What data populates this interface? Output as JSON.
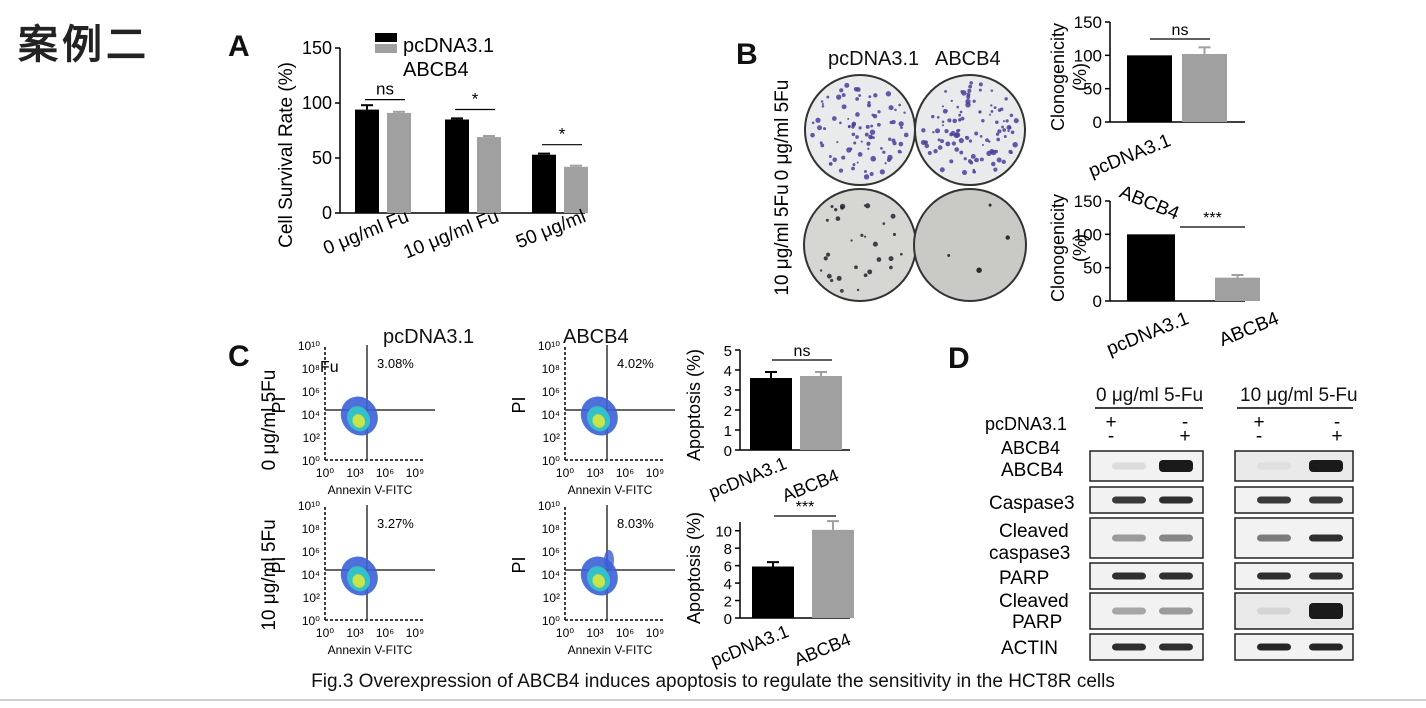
{
  "header_title": "案例二",
  "caption": "Fig.3 Overexpression of ABCB4 induces apoptosis to regulate the sensitivity in the HCT8R cells",
  "colors": {
    "pcdna": "#000000",
    "abcb4": "#a0a0a0"
  },
  "panelA": {
    "letter": "A",
    "ylabel": "Cell Survival Rate (%)",
    "yticks": [
      "0",
      "50",
      "100",
      "150"
    ],
    "categories": [
      "0 μg/ml Fu",
      "10 μg/ml Fu",
      "50 μg/ml"
    ],
    "legend": [
      "pcDNA3.1",
      "ABCB4"
    ],
    "significance": [
      "ns",
      "*",
      "*"
    ]
  },
  "panelB": {
    "letter": "B",
    "col_labels": [
      "pcDNA3.1",
      "ABCB4"
    ],
    "row_labels": [
      "0 μg/ml 5Fu",
      "10 μg/ml 5Fu"
    ],
    "chart_ylabel": [
      "Clonogenicity",
      "(%)"
    ],
    "top_yticks": [
      "0",
      "50",
      "100",
      "150"
    ],
    "top_xlabels": [
      "pcDNA3.1",
      "ABCB4"
    ],
    "top_sig": "ns",
    "bottom_yticks": [
      "0",
      "50",
      "100",
      "150"
    ],
    "bottom_xlabels": [
      "pcDNA3.1",
      "ABCB4"
    ],
    "bottom_sig": "***"
  },
  "panelC": {
    "letter": "C",
    "col_titles": [
      "pcDNA3.1",
      "ABCB4"
    ],
    "row_labels": [
      "0 μg/ml 5Fu",
      "10 μg/ml 5Fu"
    ],
    "stray_label": "Fu",
    "flow_yticks": [
      "10⁰",
      "10²",
      "10⁴",
      "10⁶",
      "10⁸",
      "10¹⁰"
    ],
    "flow_xticks": [
      "10⁰",
      "10³",
      "10⁶",
      "10⁹"
    ],
    "flow_xlabel": "Annexin V-FITC",
    "flow_ylabel": "PI",
    "percentages": [
      "3.08%",
      "4.02%",
      "3.27%",
      "8.03%"
    ],
    "apoptosis_ylabel": "Apoptosis (%)",
    "top_yticks": [
      "0",
      "1",
      "2",
      "3",
      "4",
      "5"
    ],
    "bottom_yticks": [
      "0",
      "2",
      "4",
      "6",
      "8",
      "10"
    ],
    "xlabels": [
      "pcDNA3.1",
      "ABCB4"
    ],
    "top_sig": "ns",
    "bottom_sig": "***"
  },
  "panelD": {
    "letter": "D",
    "group_titles": [
      "0 μg/ml 5-Fu",
      "10 μg/ml 5-Fu"
    ],
    "row_header_labels": [
      "pcDNA3.1",
      "ABCB4"
    ],
    "signs_pcdna": [
      "+",
      "-",
      "+",
      "-"
    ],
    "signs_abcb4": [
      "-",
      "+",
      "-",
      "+"
    ],
    "blot_labels": [
      "ABCB4",
      "Caspase3",
      "Cleaved",
      "caspase3",
      "PARP",
      "Cleaved",
      "PARP",
      "ACTIN"
    ]
  },
  "chart_data": [
    {
      "type": "bar",
      "title": "",
      "ylabel": "Cell Survival Rate (%)",
      "categories": [
        "0 μg/ml Fu",
        "10 μg/ml Fu",
        "50 μg/ml"
      ],
      "series": [
        {
          "name": "pcDNA3.1",
          "values": [
            94,
            85,
            53
          ],
          "errors": [
            4,
            1,
            1
          ]
        },
        {
          "name": "ABCB4",
          "values": [
            91,
            69,
            42
          ],
          "errors": [
            1,
            1,
            1
          ]
        }
      ],
      "ylim": [
        0,
        150
      ]
    },
    {
      "type": "bar",
      "ylabel": "Clonogenicity (%)",
      "categories": [
        "pcDNA3.1",
        "ABCB4"
      ],
      "values": [
        100,
        102
      ],
      "errors": [
        0,
        10
      ],
      "ylim": [
        0,
        150
      ]
    },
    {
      "type": "bar",
      "ylabel": "Clonogenicity (%)",
      "categories": [
        "pcDNA3.1",
        "ABCB4"
      ],
      "values": [
        100,
        35
      ],
      "errors": [
        0,
        4
      ],
      "ylim": [
        0,
        150
      ]
    },
    {
      "type": "bar",
      "ylabel": "Apoptosis (%)",
      "categories": [
        "pcDNA3.1",
        "ABCB4"
      ],
      "values": [
        3.6,
        3.7
      ],
      "errors": [
        0.3,
        0.2
      ],
      "ylim": [
        0,
        5
      ]
    },
    {
      "type": "bar",
      "ylabel": "Apoptosis (%)",
      "categories": [
        "pcDNA3.1",
        "ABCB4"
      ],
      "values": [
        5.9,
        10.1
      ],
      "errors": [
        0.5,
        1.0
      ],
      "ylim": [
        0,
        11
      ]
    }
  ]
}
